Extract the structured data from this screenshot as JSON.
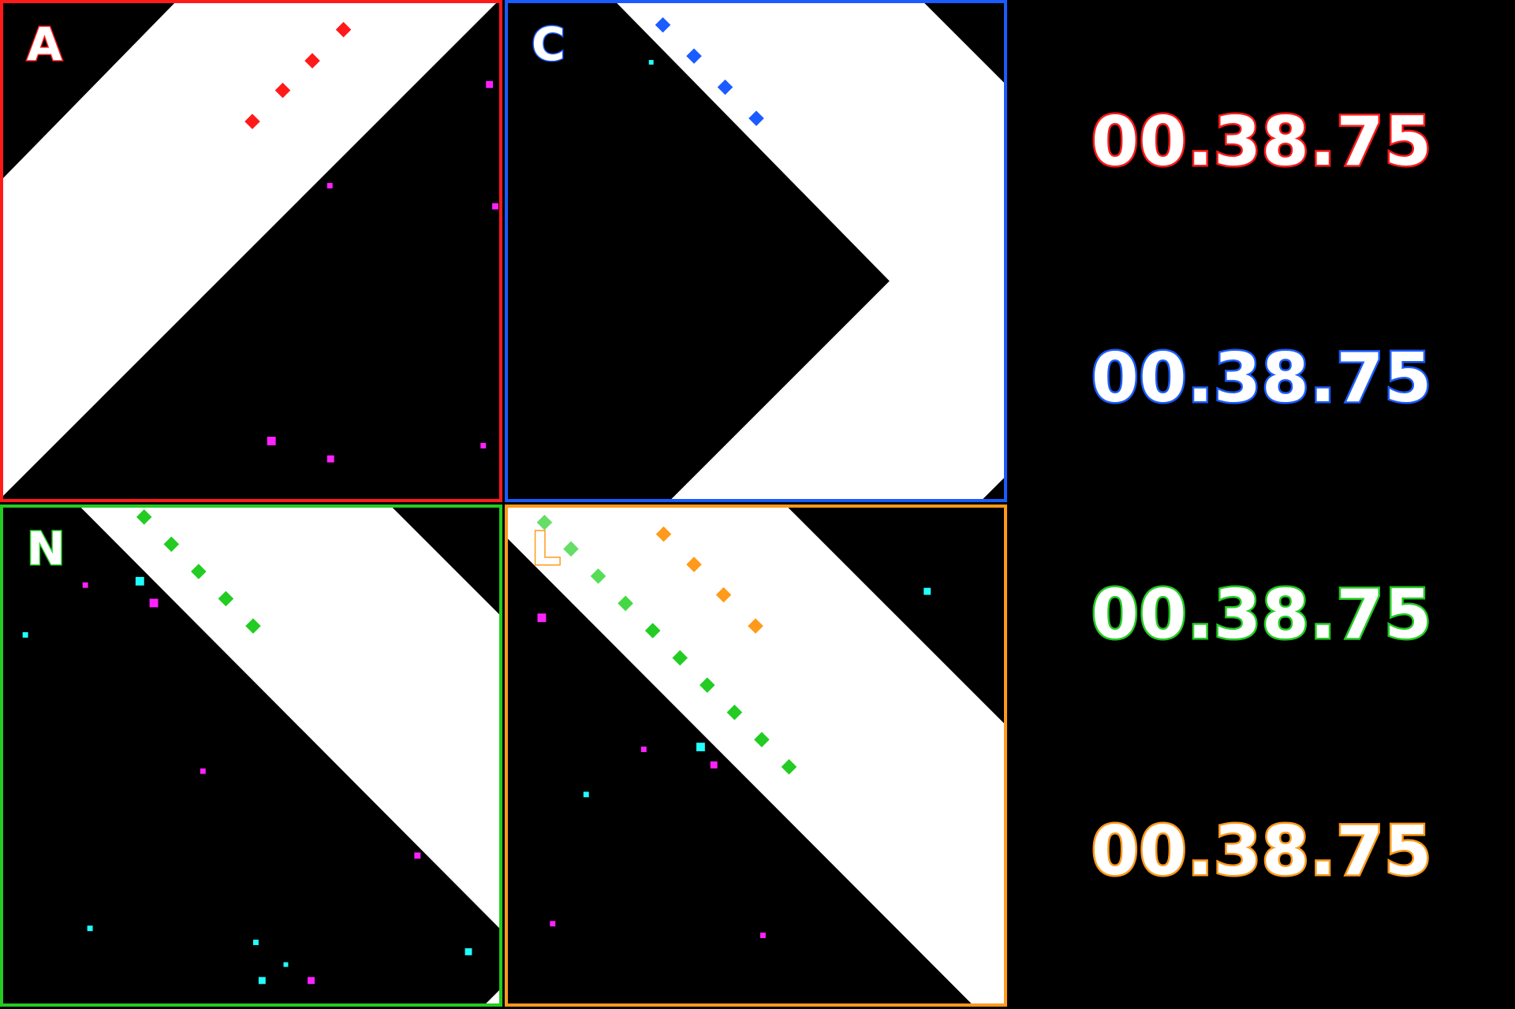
{
  "panels": [
    {
      "id": "A",
      "letter": "A",
      "color": "#ff1a1a",
      "letter_visible": true
    },
    {
      "id": "C",
      "letter": "C",
      "color": "#1a5cff",
      "letter_visible": true
    },
    {
      "id": "N",
      "letter": "N",
      "color": "#22cc22",
      "letter_visible": true
    },
    {
      "id": "L",
      "letter": "L",
      "color": "#ff9a1a",
      "letter_visible": true
    }
  ],
  "timers": [
    {
      "value": "00.38.75",
      "color": "#ff1a1a"
    },
    {
      "value": "00.38.75",
      "color": "#1a5cff"
    },
    {
      "value": "00.38.75",
      "color": "#22cc22"
    },
    {
      "value": "00.38.75",
      "color": "#ff9a1a"
    }
  ],
  "colors": {
    "background": "#000000",
    "track": "#ffffff",
    "particle_magenta": "#ff22ff",
    "particle_cyan": "#22ffff"
  }
}
